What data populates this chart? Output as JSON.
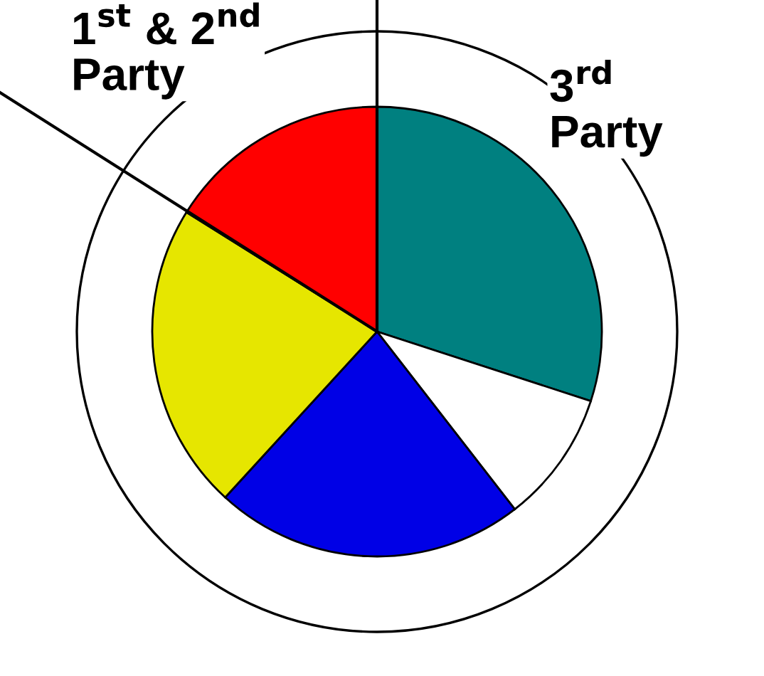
{
  "chart_data": {
    "type": "pie",
    "categories": [
      null,
      null,
      null,
      null,
      null
    ],
    "values": [
      30,
      9.5,
      22.3,
      22.1,
      16.1
    ],
    "colors": [
      "#008080",
      "#ffffff",
      "#0000e6",
      "#e6e600",
      "#ff0000"
    ],
    "annotations": [
      "1$^{st}$ & 2$^{nd}$\nParty",
      "3$^{rd}$\nParty"
    ]
  }
}
